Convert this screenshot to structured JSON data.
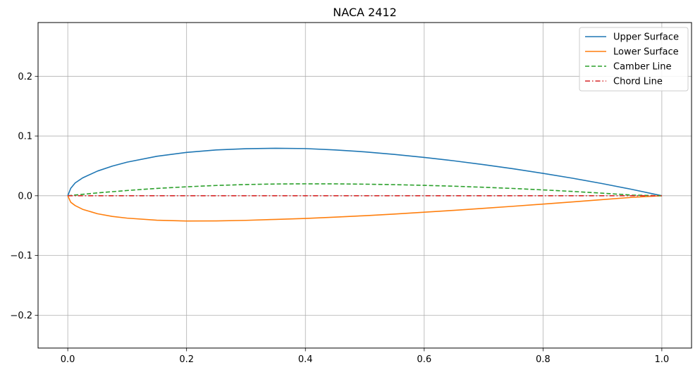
{
  "chart_data": {
    "type": "line",
    "title": "NACA 2412",
    "xlabel": "",
    "ylabel": "",
    "xlim": [
      -0.05,
      1.05
    ],
    "ylim": [
      -0.255,
      0.29
    ],
    "x_ticks": [
      0.0,
      0.2,
      0.4,
      0.6,
      0.8,
      1.0
    ],
    "x_tick_labels": [
      "0.0",
      "0.2",
      "0.4",
      "0.6",
      "0.8",
      "1.0"
    ],
    "y_ticks": [
      -0.2,
      -0.1,
      0.0,
      0.1,
      0.2
    ],
    "y_tick_labels": [
      "−0.2",
      "−0.1",
      "0.0",
      "0.1",
      "0.2"
    ],
    "grid": true,
    "legend_position": "top-right",
    "series": [
      {
        "name": "Upper Surface",
        "color": "#1f77b4",
        "dash": "solid",
        "x": [
          0.0,
          0.005,
          0.0125,
          0.025,
          0.05,
          0.075,
          0.1,
          0.15,
          0.2,
          0.25,
          0.3,
          0.35,
          0.4,
          0.45,
          0.5,
          0.55,
          0.6,
          0.65,
          0.7,
          0.75,
          0.8,
          0.85,
          0.9,
          0.95,
          1.0
        ],
        "y": [
          0.0,
          0.0125,
          0.0215,
          0.0299,
          0.0413,
          0.0496,
          0.0563,
          0.0661,
          0.0726,
          0.0767,
          0.0788,
          0.0795,
          0.079,
          0.0767,
          0.0735,
          0.0692,
          0.0642,
          0.0585,
          0.0521,
          0.0451,
          0.0375,
          0.0293,
          0.0203,
          0.0106,
          0.0
        ]
      },
      {
        "name": "Lower Surface",
        "color": "#ff7f0e",
        "dash": "solid",
        "x": [
          0.0,
          0.005,
          0.0125,
          0.025,
          0.05,
          0.075,
          0.1,
          0.15,
          0.2,
          0.25,
          0.3,
          0.35,
          0.4,
          0.45,
          0.5,
          0.55,
          0.6,
          0.65,
          0.7,
          0.75,
          0.8,
          0.85,
          0.9,
          0.95,
          1.0
        ],
        "y": [
          0.0,
          -0.0109,
          -0.0165,
          -0.0227,
          -0.0301,
          -0.0346,
          -0.0375,
          -0.041,
          -0.0423,
          -0.0422,
          -0.0412,
          -0.0396,
          -0.038,
          -0.0358,
          -0.0334,
          -0.0306,
          -0.0276,
          -0.0244,
          -0.021,
          -0.0176,
          -0.014,
          -0.0103,
          -0.0065,
          -0.0027,
          0.0
        ]
      },
      {
        "name": "Camber Line",
        "color": "#2ca02c",
        "dash": "dashed",
        "x": [
          0.0,
          0.05,
          0.1,
          0.15,
          0.2,
          0.25,
          0.3,
          0.35,
          0.4,
          0.45,
          0.5,
          0.55,
          0.6,
          0.65,
          0.7,
          0.75,
          0.8,
          0.85,
          0.9,
          0.95,
          1.0
        ],
        "y": [
          0.0,
          0.0048,
          0.0088,
          0.0123,
          0.015,
          0.0172,
          0.0188,
          0.0197,
          0.02,
          0.0199,
          0.0194,
          0.0186,
          0.0174,
          0.016,
          0.0142,
          0.0122,
          0.0098,
          0.0072,
          0.0043,
          0.0011,
          0.0
        ]
      },
      {
        "name": "Chord Line",
        "color": "#d62728",
        "dash": "dashdot",
        "x": [
          0.0,
          1.0
        ],
        "y": [
          0.0,
          0.0
        ]
      }
    ]
  }
}
